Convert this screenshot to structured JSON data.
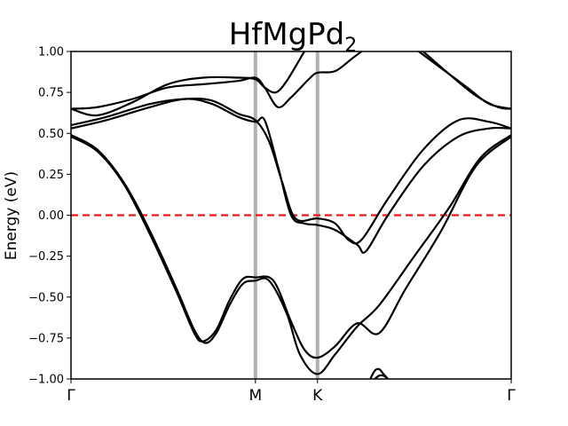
{
  "chart_data": {
    "type": "line",
    "title": "HfMgPd",
    "title_subscript": "2",
    "xlabel": "",
    "ylabel": "Energy (eV)",
    "ylim": [
      -1.0,
      1.0
    ],
    "xlim": [
      0,
      1
    ],
    "yticks": [
      -1.0,
      -0.75,
      -0.5,
      -0.25,
      0.0,
      0.25,
      0.5,
      0.75,
      1.0
    ],
    "ytick_labels": [
      "−1.00",
      "−0.75",
      "−0.50",
      "−0.25",
      "0.00",
      "0.25",
      "0.50",
      "0.75",
      "1.00"
    ],
    "kpoints": [
      {
        "label": "Γ",
        "x": 0.0
      },
      {
        "label": "M",
        "x": 0.419
      },
      {
        "label": "K",
        "x": 0.56
      },
      {
        "label": "Γ",
        "x": 1.0
      }
    ],
    "fermi_level": 0.0,
    "colors": {
      "bands": "#000000",
      "fermi": "#e41a1c",
      "kpath": "#b0b0b0"
    },
    "series": [
      {
        "values": [
          [
            0.0,
            0.49
          ],
          [
            0.06,
            0.4
          ],
          [
            0.12,
            0.2
          ],
          [
            0.18,
            -0.1
          ],
          [
            0.24,
            -0.45
          ],
          [
            0.28,
            -0.7
          ],
          [
            0.305,
            -0.78
          ],
          [
            0.33,
            -0.72
          ],
          [
            0.36,
            -0.55
          ],
          [
            0.39,
            -0.42
          ],
          [
            0.419,
            -0.4
          ],
          [
            0.45,
            -0.4
          ],
          [
            0.49,
            -0.6
          ],
          [
            0.52,
            -0.85
          ],
          [
            0.56,
            -0.97
          ],
          [
            0.6,
            -0.85
          ],
          [
            0.65,
            -0.68
          ],
          [
            0.7,
            -0.55
          ],
          [
            0.78,
            -0.25
          ],
          [
            0.86,
            0.05
          ],
          [
            0.93,
            0.35
          ],
          [
            1.0,
            0.49
          ]
        ]
      },
      {
        "values": [
          [
            0.0,
            0.48
          ],
          [
            0.06,
            0.39
          ],
          [
            0.12,
            0.19
          ],
          [
            0.18,
            -0.12
          ],
          [
            0.24,
            -0.47
          ],
          [
            0.28,
            -0.72
          ],
          [
            0.3,
            -0.77
          ],
          [
            0.33,
            -0.7
          ],
          [
            0.36,
            -0.52
          ],
          [
            0.39,
            -0.39
          ],
          [
            0.419,
            -0.38
          ],
          [
            0.46,
            -0.4
          ],
          [
            0.5,
            -0.65
          ],
          [
            0.53,
            -0.82
          ],
          [
            0.56,
            -0.87
          ],
          [
            0.6,
            -0.8
          ],
          [
            0.65,
            -0.66
          ],
          [
            0.7,
            -0.72
          ],
          [
            0.76,
            -0.45
          ],
          [
            0.84,
            -0.1
          ],
          [
            0.92,
            0.3
          ],
          [
            1.0,
            0.48
          ]
        ]
      },
      {
        "values": [
          [
            0.0,
            0.53
          ],
          [
            0.08,
            0.58
          ],
          [
            0.18,
            0.66
          ],
          [
            0.26,
            0.71
          ],
          [
            0.32,
            0.68
          ],
          [
            0.38,
            0.6
          ],
          [
            0.419,
            0.57
          ],
          [
            0.44,
            0.58
          ],
          [
            0.47,
            0.3
          ],
          [
            0.5,
            0.0
          ],
          [
            0.53,
            -0.05
          ],
          [
            0.56,
            -0.06
          ],
          [
            0.6,
            -0.09
          ],
          [
            0.65,
            -0.18
          ],
          [
            0.67,
            -0.22
          ],
          [
            0.72,
            0.0
          ],
          [
            0.8,
            0.3
          ],
          [
            0.88,
            0.48
          ],
          [
            0.95,
            0.53
          ],
          [
            1.0,
            0.53
          ]
        ]
      },
      {
        "values": [
          [
            0.0,
            0.55
          ],
          [
            0.08,
            0.6
          ],
          [
            0.18,
            0.68
          ],
          [
            0.26,
            0.71
          ],
          [
            0.32,
            0.7
          ],
          [
            0.38,
            0.62
          ],
          [
            0.419,
            0.58
          ],
          [
            0.45,
            0.45
          ],
          [
            0.48,
            0.2
          ],
          [
            0.51,
            -0.02
          ],
          [
            0.56,
            -0.02
          ],
          [
            0.6,
            -0.05
          ],
          [
            0.63,
            -0.15
          ],
          [
            0.66,
            -0.15
          ],
          [
            0.72,
            0.1
          ],
          [
            0.8,
            0.4
          ],
          [
            0.88,
            0.58
          ],
          [
            0.95,
            0.57
          ],
          [
            1.0,
            0.53
          ]
        ]
      },
      {
        "values": [
          [
            0.0,
            0.65
          ],
          [
            0.06,
            0.66
          ],
          [
            0.14,
            0.71
          ],
          [
            0.22,
            0.78
          ],
          [
            0.3,
            0.8
          ],
          [
            0.38,
            0.82
          ],
          [
            0.419,
            0.84
          ],
          [
            0.44,
            0.78
          ],
          [
            0.47,
            0.66
          ],
          [
            0.5,
            0.72
          ],
          [
            0.54,
            0.83
          ],
          [
            0.56,
            0.87
          ],
          [
            0.6,
            0.88
          ],
          [
            0.64,
            0.96
          ],
          [
            0.66,
            1.0
          ]
        ]
      },
      {
        "values": [
          [
            0.0,
            0.65
          ],
          [
            0.06,
            0.61
          ],
          [
            0.14,
            0.69
          ],
          [
            0.22,
            0.8
          ],
          [
            0.3,
            0.84
          ],
          [
            0.38,
            0.84
          ],
          [
            0.419,
            0.83
          ],
          [
            0.44,
            0.78
          ],
          [
            0.465,
            0.75
          ],
          [
            0.49,
            0.82
          ],
          [
            0.53,
            1.0
          ]
        ]
      },
      {
        "values": [
          [
            0.79,
            1.0
          ],
          [
            0.84,
            0.9
          ],
          [
            0.9,
            0.78
          ],
          [
            0.95,
            0.68
          ],
          [
            1.0,
            0.65
          ]
        ]
      },
      {
        "values": [
          [
            0.8,
            1.0
          ],
          [
            0.86,
            0.86
          ],
          [
            0.92,
            0.73
          ],
          [
            0.97,
            0.66
          ],
          [
            1.0,
            0.65
          ]
        ]
      },
      {
        "values": [
          [
            0.68,
            -1.0
          ],
          [
            0.69,
            -0.95
          ],
          [
            0.7,
            -0.94
          ],
          [
            0.71,
            -0.97
          ],
          [
            0.72,
            -1.0
          ]
        ]
      },
      {
        "values": [
          [
            0.69,
            -1.0
          ],
          [
            0.7,
            -0.98
          ],
          [
            0.71,
            -0.98
          ],
          [
            0.72,
            -1.0
          ]
        ]
      }
    ]
  }
}
